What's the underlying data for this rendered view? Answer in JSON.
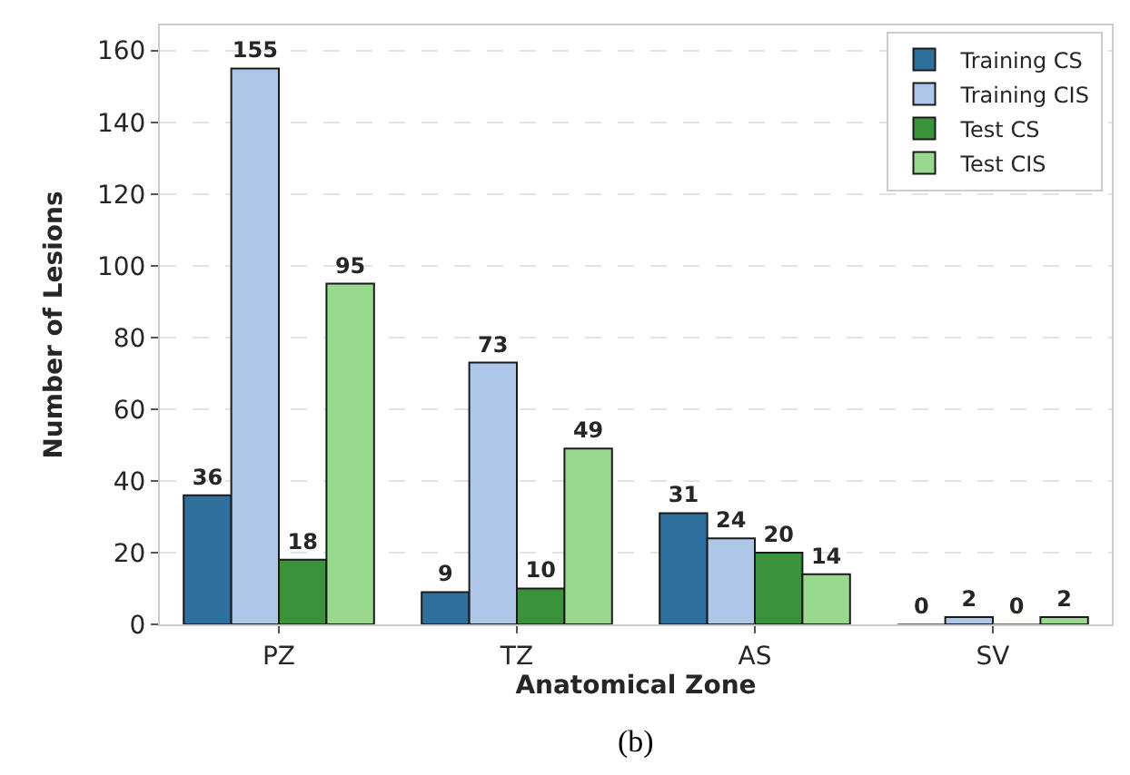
{
  "chart_data": {
    "type": "bar",
    "xlabel": "Anatomical Zone",
    "ylabel": "Number of Lesions",
    "categories": [
      "PZ",
      "TZ",
      "AS",
      "SV"
    ],
    "series": [
      {
        "name": "Training CS",
        "color": "#2e6f9e",
        "values": [
          36,
          9,
          31,
          0
        ]
      },
      {
        "name": "Training CIS",
        "color": "#aec7e8",
        "values": [
          155,
          73,
          24,
          2
        ]
      },
      {
        "name": "Test CS",
        "color": "#3a923a",
        "values": [
          18,
          10,
          20,
          0
        ]
      },
      {
        "name": "Test CIS",
        "color": "#98d98e",
        "values": [
          95,
          49,
          14,
          2
        ]
      }
    ],
    "ylim": [
      0,
      167
    ],
    "yticks": [
      0,
      20,
      40,
      60,
      80,
      100,
      120,
      140,
      160
    ],
    "grid": "y",
    "legend": "top right",
    "data_labels": true,
    "annotations": [
      "(b)"
    ]
  }
}
